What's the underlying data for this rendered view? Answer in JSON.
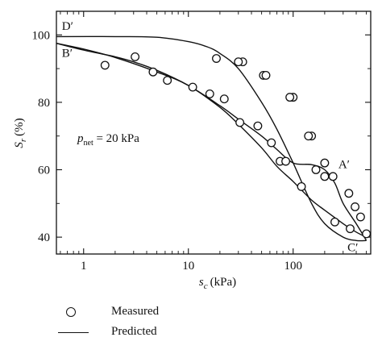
{
  "chart_data": {
    "type": "scatter",
    "xlabel": "s",
    "xlabel_sub": "c",
    "xlabel_unit": "(kPa)",
    "ylabel": "S",
    "ylabel_sub": "r",
    "ylabel_unit": "(%)",
    "x_scale": "log",
    "xlim": [
      0.55,
      550
    ],
    "ylim": [
      35,
      107
    ],
    "x_ticks": [
      1,
      10,
      100
    ],
    "x_tick_labels": [
      "1",
      "10",
      "100"
    ],
    "y_ticks": [
      40,
      60,
      80,
      100
    ],
    "y_tick_labels": [
      "40",
      "60",
      "80",
      "100"
    ],
    "grid": false,
    "annotation": {
      "prefix": "p",
      "subscript": "net",
      "value": " = 20 kPa"
    },
    "curve_labels": [
      {
        "text": "D′",
        "x": 0.62,
        "y": 101.5
      },
      {
        "text": "B′",
        "x": 0.62,
        "y": 93.5
      },
      {
        "text": "A′",
        "x": 270,
        "y": 60.5
      },
      {
        "text": "C′",
        "x": 330,
        "y": 35.8
      }
    ],
    "series": [
      {
        "kind": "points",
        "x": [
          1.6,
          3.1,
          4.6,
          6.3,
          11,
          16,
          22,
          31,
          33,
          46,
          52,
          62,
          75,
          85,
          100,
          120,
          150,
          165,
          200,
          200,
          240,
          250,
          340,
          350,
          390,
          440,
          500,
          18.5,
          30,
          55,
          93,
          140
        ],
        "y": [
          91,
          93.5,
          89,
          86.5,
          84.5,
          82.5,
          81,
          74,
          92,
          73,
          88,
          68,
          62.5,
          62.5,
          81.5,
          55,
          70,
          60,
          62,
          58,
          58,
          44.5,
          53,
          42.5,
          49,
          46,
          41,
          93,
          92,
          88,
          81.5,
          70
        ]
      },
      {
        "kind": "line",
        "x": [
          0.55,
          2,
          5,
          10,
          15,
          20,
          30,
          50,
          70,
          100,
          150,
          200,
          300,
          400,
          500
        ],
        "y": [
          99.5,
          99.5,
          99.3,
          98,
          96.5,
          94.5,
          90,
          80,
          72,
          62,
          50,
          44,
          40,
          39,
          39
        ]
      },
      {
        "kind": "line",
        "x": [
          0.55,
          1,
          2,
          3,
          5,
          10,
          20,
          30,
          50,
          70,
          100,
          150,
          200,
          250,
          300,
          400,
          500
        ],
        "y": [
          97.5,
          95.5,
          93.5,
          92,
          89.5,
          85,
          79,
          75,
          70,
          66,
          62,
          61.5,
          60,
          56,
          50,
          44,
          39
        ]
      },
      {
        "kind": "line",
        "x": [
          0.55,
          1,
          2,
          5,
          10,
          20,
          30,
          50,
          70,
          100,
          150,
          200,
          300,
          400,
          500
        ],
        "y": [
          97.5,
          95.8,
          93.3,
          89,
          85,
          78.5,
          73.5,
          66.5,
          61,
          56.5,
          51,
          48,
          44,
          41.5,
          40
        ]
      }
    ]
  },
  "legend": {
    "measured_label": "Measured",
    "predicted_label": "Predicted"
  }
}
